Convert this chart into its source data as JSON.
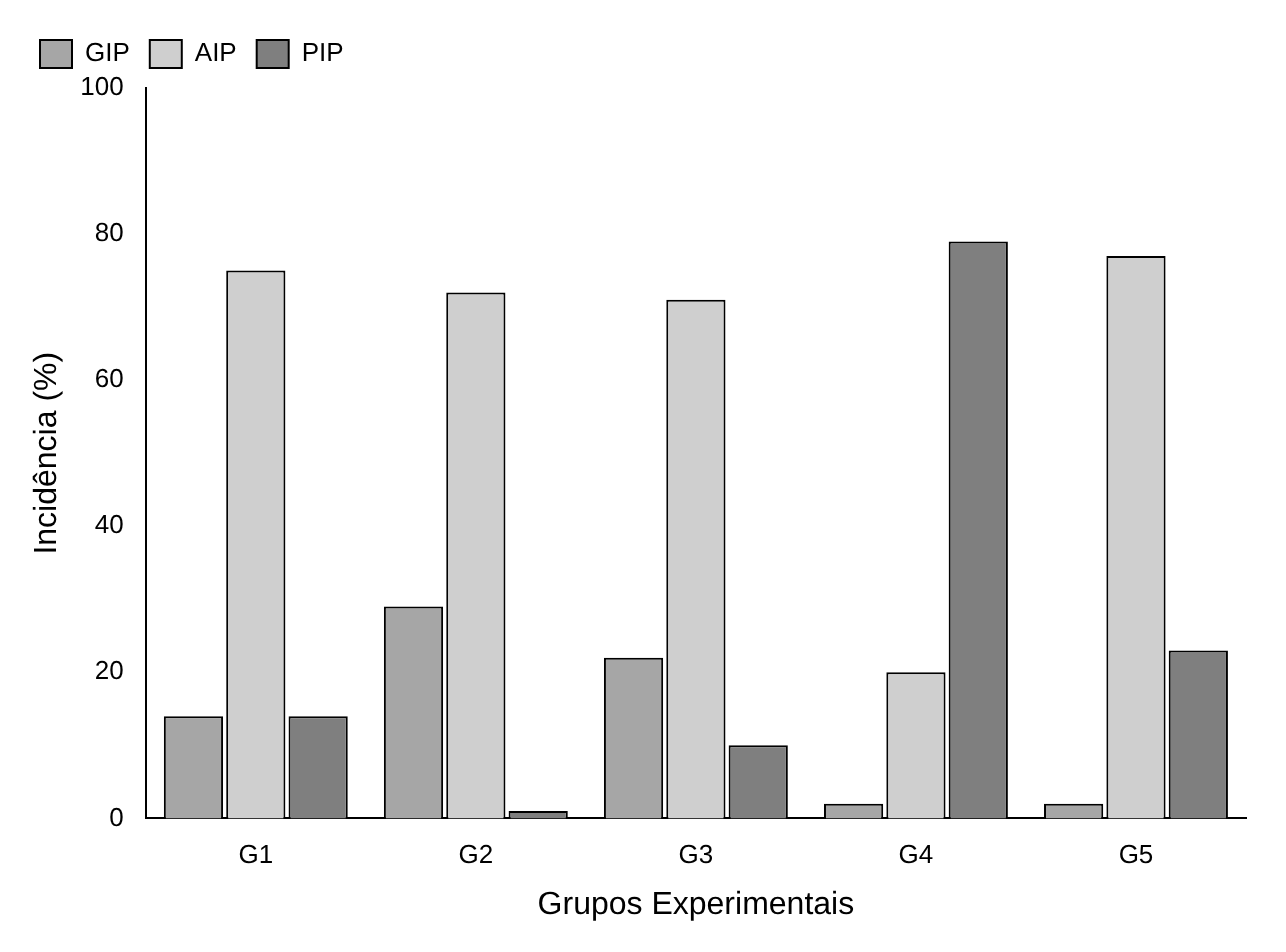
{
  "chart_data": {
    "type": "bar",
    "xlabel": "Grupos Experimentais",
    "ylabel": "Incidência (%)",
    "categories": [
      "G1",
      "G2",
      "G3",
      "G4",
      "G5"
    ],
    "series": [
      {
        "name": "GIP",
        "color": "#a6a6a6",
        "values": [
          14,
          29,
          22,
          2,
          2
        ]
      },
      {
        "name": "AIP",
        "color": "#cfcfcf",
        "values": [
          75,
          72,
          71,
          20,
          77
        ]
      },
      {
        "name": "PIP",
        "color": "#7f7f7f",
        "values": [
          14,
          1,
          10,
          79,
          23
        ]
      }
    ],
    "ylim": [
      0,
      100
    ],
    "yticks": [
      0,
      20,
      40,
      60,
      80,
      100
    ],
    "grid": false,
    "legend": "top left"
  }
}
